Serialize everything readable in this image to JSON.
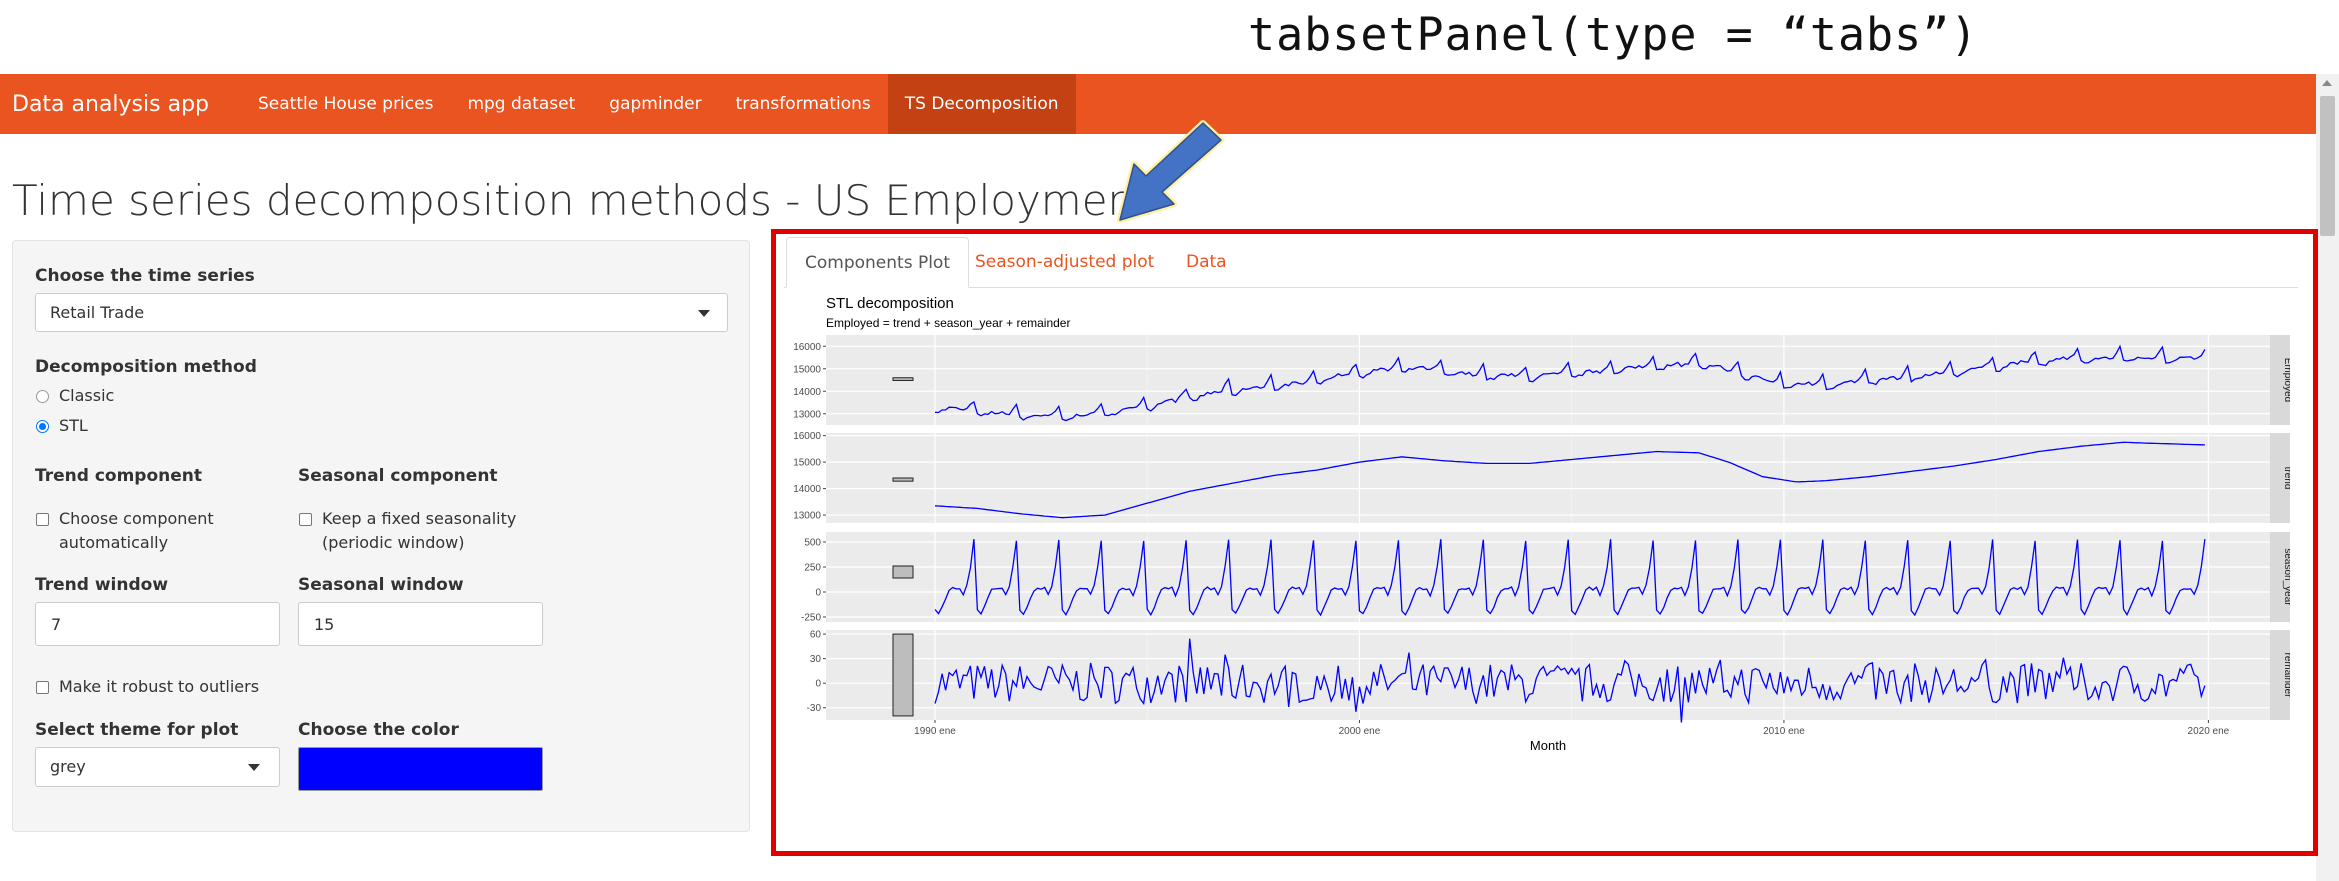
{
  "annotation": "tabsetPanel(type = “tabs”)",
  "navbar": {
    "brand": "Data analysis app",
    "items": [
      {
        "label": "Seattle House prices",
        "active": false
      },
      {
        "label": "mpg dataset",
        "active": false
      },
      {
        "label": "gapminder",
        "active": false
      },
      {
        "label": "transformations",
        "active": false
      },
      {
        "label": "TS Decomposition",
        "active": true
      }
    ],
    "color": "#e95420",
    "active_color": "#c34113"
  },
  "page_title": "Time series decomposition methods - US Employment",
  "sidebar": {
    "series_label": "Choose the time series",
    "series_value": "Retail Trade",
    "method_label": "Decomposition method",
    "methods": [
      {
        "label": "Classic",
        "selected": false
      },
      {
        "label": "STL",
        "selected": true
      }
    ],
    "trend_component_label": "Trend component",
    "trend_auto_line1": "Choose component",
    "trend_auto_line2": "automatically",
    "seasonal_component_label": "Seasonal component",
    "seasonal_fixed_line1": "Keep a fixed seasonality",
    "seasonal_fixed_line2": "(periodic window)",
    "trend_window_label": "Trend window",
    "trend_window_value": "7",
    "seasonal_window_label": "Seasonal window",
    "seasonal_window_value": "15",
    "robust_label": "Make it robust to outliers",
    "theme_label": "Select theme for plot",
    "theme_value": "grey",
    "color_label": "Choose the color",
    "color_value": "#0000ff"
  },
  "tabs": [
    {
      "label": "Components Plot",
      "active": true
    },
    {
      "label": "Season-adjusted plot",
      "active": false
    },
    {
      "label": "Data",
      "active": false
    }
  ],
  "chart_data": {
    "type": "line",
    "title": "STL decomposition",
    "subtitle": "Employed = trend + season_year + remainder",
    "xlabel": "Month",
    "x_ticks": [
      "1990 ene",
      "2000 ene",
      "2010 ene",
      "2020 ene"
    ],
    "x_range": [
      1990.0,
      2019.92
    ],
    "line_color": "#0000ff",
    "panels": [
      {
        "name": "Employed",
        "yticks": [
          13000,
          14000,
          15000,
          16000
        ],
        "ylim": [
          12500,
          16500
        ],
        "trend_anchors": [
          [
            1990.0,
            13300
          ],
          [
            1991.5,
            13000
          ],
          [
            1993.0,
            12850
          ],
          [
            1994.3,
            13100
          ],
          [
            1995.5,
            13550
          ],
          [
            1997.0,
            14050
          ],
          [
            1998.5,
            14350
          ],
          [
            2000.0,
            14850
          ],
          [
            2001.3,
            15050
          ],
          [
            2002.5,
            14750
          ],
          [
            2004.0,
            14650
          ],
          [
            2005.5,
            14850
          ],
          [
            2007.0,
            15150
          ],
          [
            2008.0,
            15250
          ],
          [
            2009.0,
            14800
          ],
          [
            2009.8,
            14350
          ],
          [
            2011.0,
            14300
          ],
          [
            2012.5,
            14550
          ],
          [
            2014.0,
            14850
          ],
          [
            2015.5,
            15250
          ],
          [
            2017.0,
            15450
          ],
          [
            2018.5,
            15500
          ],
          [
            2019.92,
            15400
          ]
        ]
      },
      {
        "name": "trend",
        "yticks": [
          13000,
          14000,
          15000,
          16000
        ],
        "ylim": [
          12700,
          16100
        ],
        "trend_anchors": [
          [
            1990.0,
            13350
          ],
          [
            1991.0,
            13250
          ],
          [
            1992.0,
            13050
          ],
          [
            1993.0,
            12900
          ],
          [
            1994.0,
            13000
          ],
          [
            1995.0,
            13450
          ],
          [
            1996.0,
            13900
          ],
          [
            1997.0,
            14200
          ],
          [
            1998.0,
            14500
          ],
          [
            1999.0,
            14700
          ],
          [
            2000.0,
            15000
          ],
          [
            2001.0,
            15200
          ],
          [
            2002.0,
            15050
          ],
          [
            2003.0,
            14950
          ],
          [
            2004.0,
            14950
          ],
          [
            2005.0,
            15100
          ],
          [
            2006.0,
            15250
          ],
          [
            2007.0,
            15400
          ],
          [
            2008.0,
            15350
          ],
          [
            2008.7,
            15000
          ],
          [
            2009.5,
            14450
          ],
          [
            2010.3,
            14250
          ],
          [
            2011.0,
            14300
          ],
          [
            2012.0,
            14450
          ],
          [
            2013.0,
            14650
          ],
          [
            2014.0,
            14850
          ],
          [
            2015.0,
            15100
          ],
          [
            2016.0,
            15400
          ],
          [
            2017.0,
            15600
          ],
          [
            2018.0,
            15750
          ],
          [
            2018.5,
            15720
          ],
          [
            2019.92,
            15650
          ]
        ]
      },
      {
        "name": "season_year",
        "yticks": [
          -250,
          0,
          250,
          500
        ],
        "ylim": [
          -300,
          600
        ]
      },
      {
        "name": "remainder",
        "yticks": [
          -30,
          0,
          30,
          60
        ],
        "ylim": [
          -45,
          65
        ]
      }
    ],
    "scale_bars": [
      {
        "panel": "Employed",
        "range": [
          14480,
          14600
        ]
      },
      {
        "panel": "trend",
        "range": [
          14280,
          14400
        ]
      },
      {
        "panel": "season_year",
        "range": [
          140,
          260
        ]
      },
      {
        "panel": "remainder",
        "range": [
          -40,
          60
        ]
      }
    ]
  }
}
